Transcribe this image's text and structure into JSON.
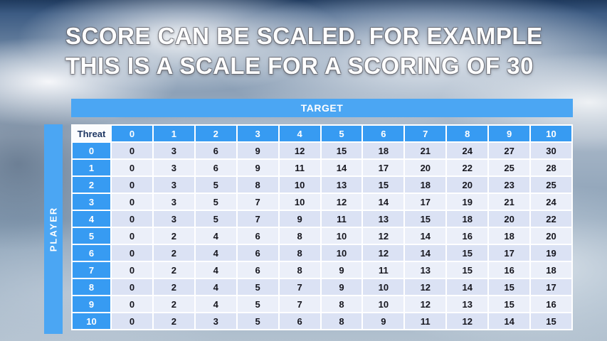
{
  "slide": {
    "title_line1": "SCORE CAN BE SCALED. FOR EXAMPLE",
    "title_line2": "THIS IS A SCALE FOR A SCORING OF 30"
  },
  "table": {
    "target_label": "TARGET",
    "player_label": "PLAYER",
    "threat_label": "Threat",
    "column_headers": [
      "0",
      "1",
      "2",
      "3",
      "4",
      "5",
      "6",
      "7",
      "8",
      "9",
      "10"
    ],
    "rows": [
      {
        "threat": "0",
        "values": [
          "0",
          "3",
          "6",
          "9",
          "12",
          "15",
          "18",
          "21",
          "24",
          "27",
          "30"
        ]
      },
      {
        "threat": "1",
        "values": [
          "0",
          "3",
          "6",
          "9",
          "11",
          "14",
          "17",
          "20",
          "22",
          "25",
          "28"
        ]
      },
      {
        "threat": "2",
        "values": [
          "0",
          "3",
          "5",
          "8",
          "10",
          "13",
          "15",
          "18",
          "20",
          "23",
          "25"
        ]
      },
      {
        "threat": "3",
        "values": [
          "0",
          "3",
          "5",
          "7",
          "10",
          "12",
          "14",
          "17",
          "19",
          "21",
          "24"
        ]
      },
      {
        "threat": "4",
        "values": [
          "0",
          "3",
          "5",
          "7",
          "9",
          "11",
          "13",
          "15",
          "18",
          "20",
          "22"
        ]
      },
      {
        "threat": "5",
        "values": [
          "0",
          "2",
          "4",
          "6",
          "8",
          "10",
          "12",
          "14",
          "16",
          "18",
          "20"
        ]
      },
      {
        "threat": "6",
        "values": [
          "0",
          "2",
          "4",
          "6",
          "8",
          "10",
          "12",
          "14",
          "15",
          "17",
          "19"
        ]
      },
      {
        "threat": "7",
        "values": [
          "0",
          "2",
          "4",
          "6",
          "8",
          "9",
          "11",
          "13",
          "15",
          "16",
          "18"
        ]
      },
      {
        "threat": "8",
        "values": [
          "0",
          "2",
          "4",
          "5",
          "7",
          "9",
          "10",
          "12",
          "14",
          "15",
          "17"
        ]
      },
      {
        "threat": "9",
        "values": [
          "0",
          "2",
          "4",
          "5",
          "7",
          "8",
          "10",
          "12",
          "13",
          "15",
          "16"
        ]
      },
      {
        "threat": "10",
        "values": [
          "0",
          "2",
          "3",
          "5",
          "6",
          "8",
          "9",
          "11",
          "12",
          "14",
          "15"
        ]
      }
    ]
  },
  "colors": {
    "header_blue": "#379BF2",
    "bar_blue": "#4BA6F3",
    "row_even": "#DBE2F4",
    "row_odd": "#EBEFF9",
    "cell_text": "#16161E",
    "threat_text": "#1F3864"
  }
}
